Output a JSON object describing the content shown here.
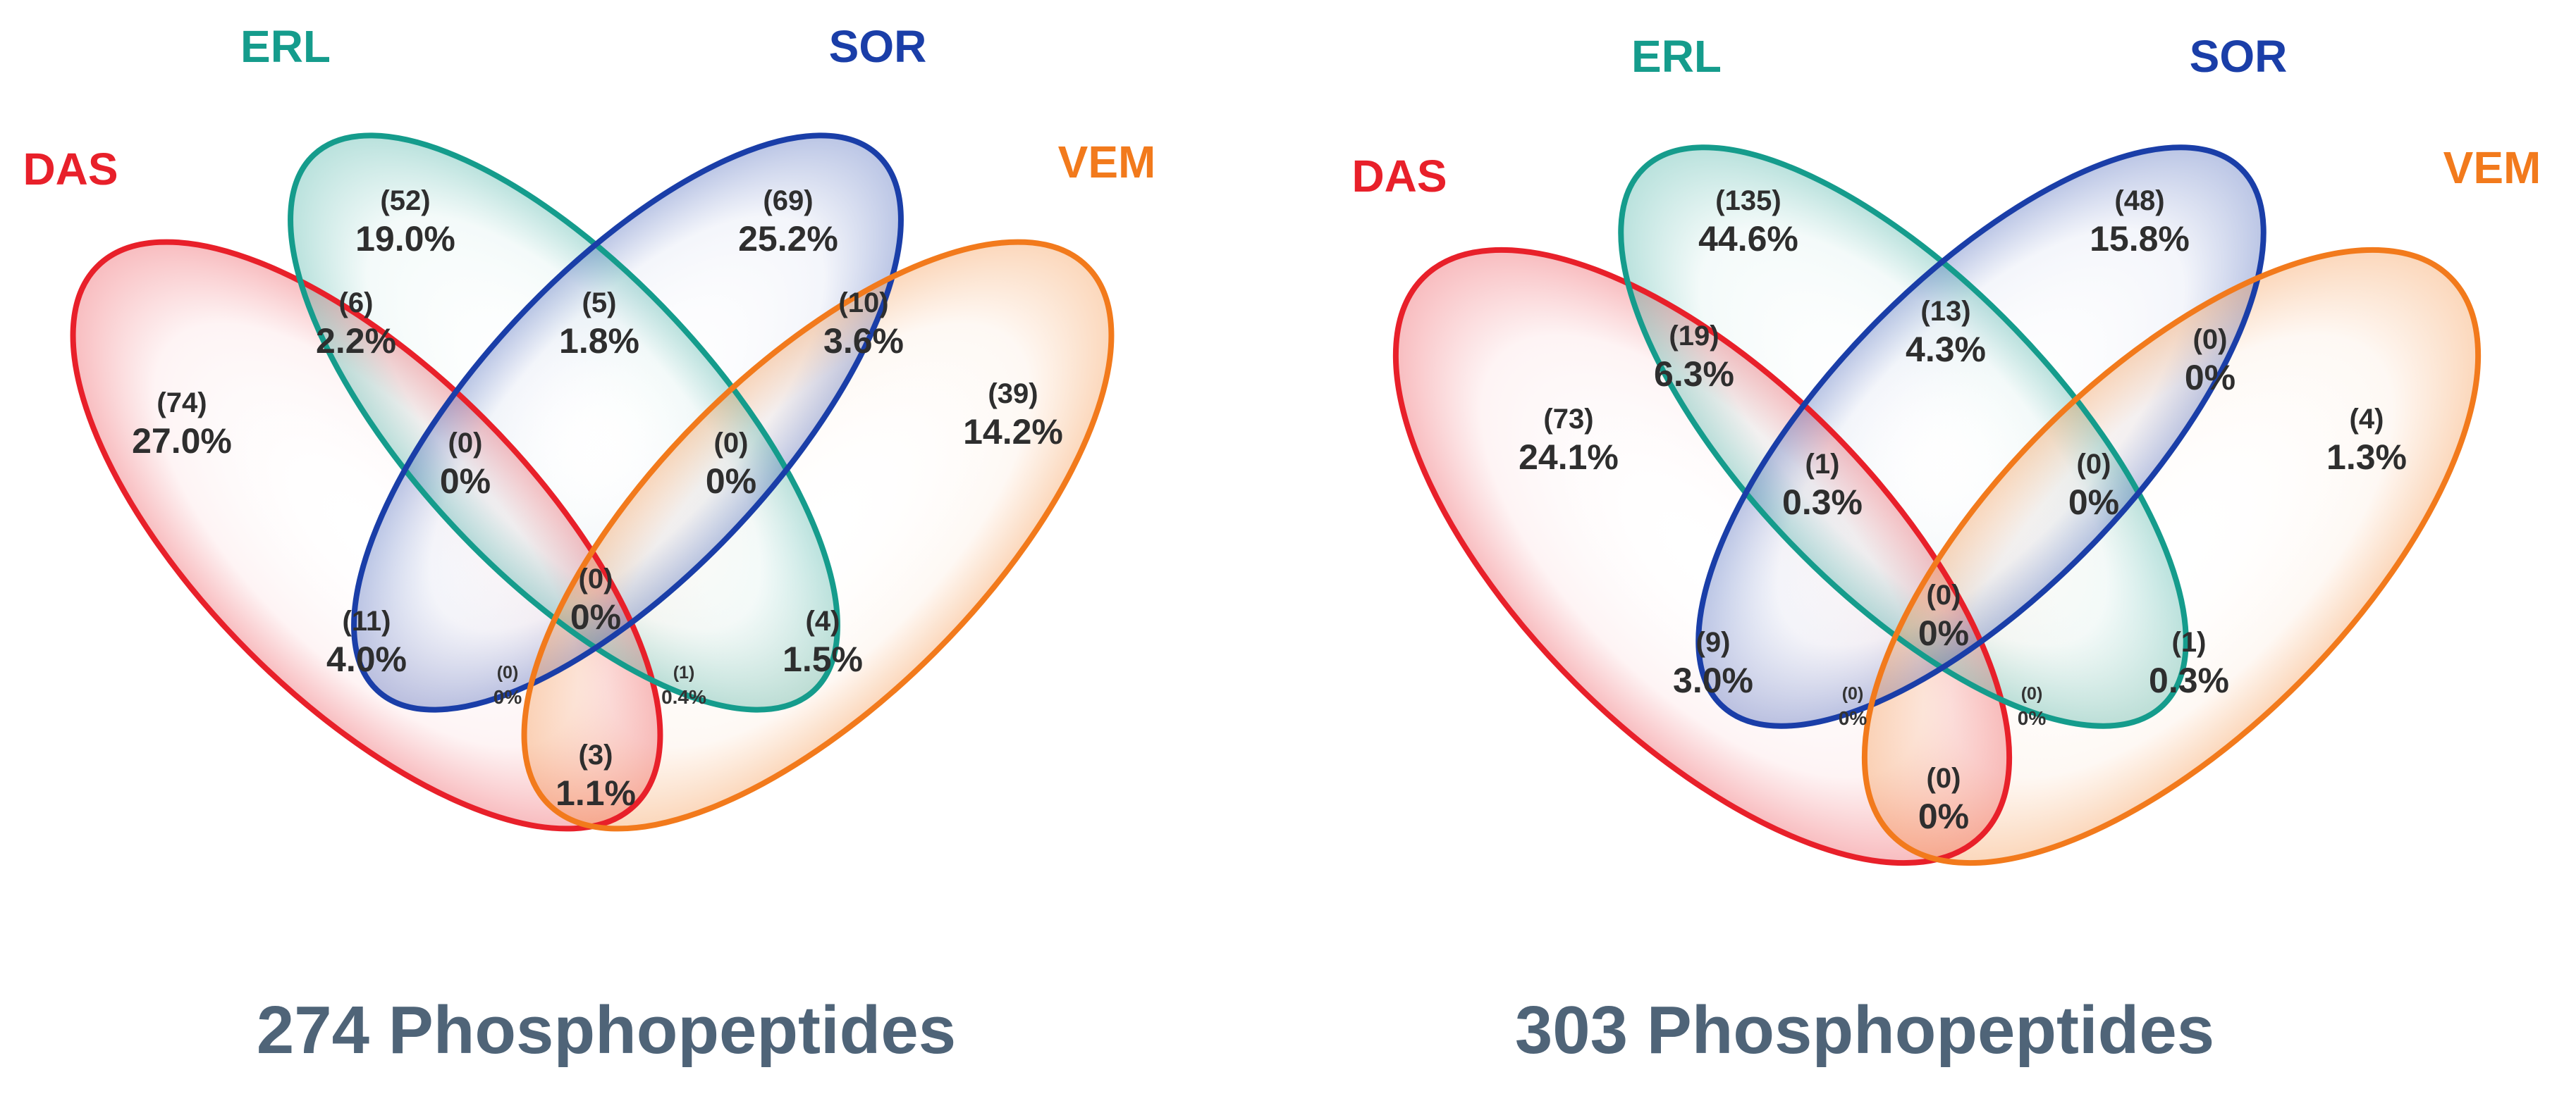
{
  "chart_data": [
    {
      "type": "venn",
      "title": "274 Phosphopeptides",
      "sets": [
        {
          "name": "DAS",
          "color": "#e8202a"
        },
        {
          "name": "ERL",
          "color": "#159c8c"
        },
        {
          "name": "SOR",
          "color": "#1a3ea8"
        },
        {
          "name": "VEM",
          "color": "#f27a1c"
        }
      ],
      "regions": {
        "DAS": {
          "count": "(74)",
          "percent": "27.0%"
        },
        "ERL": {
          "count": "(52)",
          "percent": "19.0%"
        },
        "SOR": {
          "count": "(69)",
          "percent": "25.2%"
        },
        "VEM": {
          "count": "(39)",
          "percent": "14.2%"
        },
        "DAS_ERL": {
          "count": "(6)",
          "percent": "2.2%"
        },
        "ERL_SOR": {
          "count": "(5)",
          "percent": "1.8%"
        },
        "SOR_VEM": {
          "count": "(10)",
          "percent": "3.6%"
        },
        "DAS_ERL_SOR": {
          "count": "(0)",
          "percent": "0%"
        },
        "ERL_SOR_VEM": {
          "count": "(0)",
          "percent": "0%"
        },
        "ALL": {
          "count": "(0)",
          "percent": "0%"
        },
        "DAS_SOR": {
          "count": "(11)",
          "percent": "4.0%"
        },
        "ERL_VEM": {
          "count": "(4)",
          "percent": "1.5%"
        },
        "DAS_SOR_VEM": {
          "count": "(0)",
          "percent": "0%"
        },
        "DAS_ERL_VEM": {
          "count": "(1)",
          "percent": "0.4%"
        },
        "DAS_VEM": {
          "count": "(3)",
          "percent": "1.1%"
        }
      }
    },
    {
      "type": "venn",
      "title": "303 Phosphopeptides",
      "sets": [
        {
          "name": "DAS",
          "color": "#e8202a"
        },
        {
          "name": "ERL",
          "color": "#159c8c"
        },
        {
          "name": "SOR",
          "color": "#1a3ea8"
        },
        {
          "name": "VEM",
          "color": "#f27a1c"
        }
      ],
      "regions": {
        "DAS": {
          "count": "(73)",
          "percent": "24.1%"
        },
        "ERL": {
          "count": "(135)",
          "percent": "44.6%"
        },
        "SOR": {
          "count": "(48)",
          "percent": "15.8%"
        },
        "VEM": {
          "count": "(4)",
          "percent": "1.3%"
        },
        "DAS_ERL": {
          "count": "(19)",
          "percent": "6.3%"
        },
        "ERL_SOR": {
          "count": "(13)",
          "percent": "4.3%"
        },
        "SOR_VEM": {
          "count": "(0)",
          "percent": "0%"
        },
        "DAS_ERL_SOR": {
          "count": "(1)",
          "percent": "0.3%"
        },
        "ERL_SOR_VEM": {
          "count": "(0)",
          "percent": "0%"
        },
        "ALL": {
          "count": "(0)",
          "percent": "0%"
        },
        "DAS_SOR": {
          "count": "(9)",
          "percent": "3.0%"
        },
        "ERL_VEM": {
          "count": "(1)",
          "percent": "0.3%"
        },
        "DAS_SOR_VEM": {
          "count": "(0)",
          "percent": "0%"
        },
        "DAS_ERL_VEM": {
          "count": "(0)",
          "percent": "0%"
        },
        "DAS_VEM": {
          "count": "(0)",
          "percent": "0%"
        }
      }
    }
  ]
}
